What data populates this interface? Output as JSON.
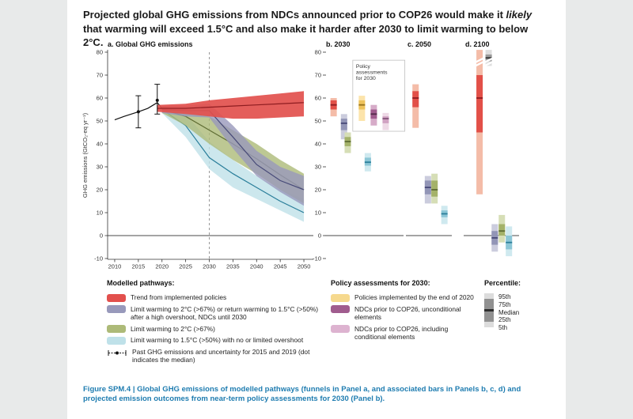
{
  "title": {
    "part1": "Projected global GHG emissions from NDCs announced prior to COP26 would make it ",
    "italic": "likely",
    "part2": " that warming will exceed 1.5°C and also make it harder after 2030 to limit warming to below 2°C."
  },
  "caption": "Figure SPM.4 | Global GHG emissions of modelled pathways (funnels in Panel a, and associated bars in Panels b, c, d) and projected emission outcomes from near-term policy assessments for 2030 (Panel b).",
  "legend": {
    "modelled_title": "Modelled pathways:",
    "modelled_items": [
      {
        "key": "red",
        "label": "Trend from implemented policies"
      },
      {
        "key": "slate",
        "label": "Limit warming to 2°C (>67%) or return warming to 1.5°C (>50%) after a high overshoot, NDCs until 2030"
      },
      {
        "key": "green",
        "label": "Limit warming to 2°C (>67%)"
      },
      {
        "key": "blue",
        "label": "Limit warming to 1.5°C (>50%) with no or limited overshoot"
      }
    ],
    "past_item": "Past GHG emissions and uncertainty for 2015 and 2019 (dot indicates the median)",
    "policy_title": "Policy assessments for 2030:",
    "policy_items": [
      {
        "key": "yellow",
        "label": "Policies implemented by the end of 2020"
      },
      {
        "key": "purple",
        "label": "NDCs prior to COP26, unconditional elements"
      },
      {
        "key": "pink",
        "label": "NDCs prior to COP26, including conditional elements"
      }
    ],
    "percentile_title": "Percentile:",
    "percentile_labels": [
      "95th",
      "75th",
      "Median",
      "25th",
      "5th"
    ]
  },
  "colors": {
    "red": {
      "band": "#e2504d",
      "outer": "#f4bca8",
      "inner": "#e25048",
      "line": "#8e1c20"
    },
    "slate": {
      "band": "#9899bb",
      "outer": "#cbccdd",
      "inner": "#9295b6",
      "line": "#474a78"
    },
    "green": {
      "band": "#adba78",
      "outer": "#d6deb6",
      "inner": "#a4b269",
      "line": "#5e6c33"
    },
    "blue": {
      "band": "#bfe1e9",
      "outer": "#cfe9ef",
      "inner": "#8cc6d6",
      "line": "#2a7e9a"
    },
    "yellow": {
      "band": "#f6d98e",
      "outer": "#fce4ab",
      "inner": "#eec35c",
      "line": "#97721c"
    },
    "purple": {
      "band": "#a05c8e",
      "outer": "#d6abc8",
      "inner": "#a05c8e",
      "line": "#532a4a"
    },
    "pink": {
      "band": "#ddb3d0",
      "outer": "#eed9e6",
      "inner": "#d0a2c2",
      "line": "#84547a"
    },
    "gray": {
      "band": "#9b9b9b",
      "outer": "#dedede",
      "inner": "#9b9b9b",
      "line": "#333333"
    },
    "percentile": [
      "#dcdcdc",
      "#919191",
      "#2e2e2e",
      "#919191",
      "#dcdcdc"
    ],
    "caption": "#1e7cb0"
  },
  "chart_data": {
    "type": "area",
    "ylim": [
      -10,
      80
    ],
    "y_ticks": [
      80,
      70,
      60,
      50,
      40,
      30,
      20,
      10,
      0,
      -10
    ],
    "panel_a": {
      "label": "a. Global GHG emissions",
      "y_axis_label": "GHG emissions (GtCO₂-eq yr⁻¹)",
      "xlim": [
        2008.5,
        2052
      ],
      "x_ticks": [
        2010,
        2015,
        2020,
        2025,
        2030,
        2035,
        2040,
        2045,
        2050
      ],
      "dashed_year": 2030,
      "historical": {
        "x": [
          2010,
          2012,
          2015,
          2017,
          2019,
          2020
        ],
        "y": [
          50.5,
          52,
          54,
          55.5,
          58,
          55.5
        ]
      },
      "past_uncertainty": [
        {
          "year": 2015,
          "lo": 47,
          "median": 54,
          "hi": 61
        },
        {
          "year": 2019,
          "lo": 53,
          "median": 59,
          "hi": 66
        }
      ],
      "funnels": [
        {
          "key": "blue",
          "x": [
            2020,
            2025,
            2030,
            2035,
            2040,
            2045,
            2050
          ],
          "lo": [
            53.5,
            43,
            29,
            21,
            16,
            11,
            6
          ],
          "hi": [
            56.5,
            53,
            41,
            33,
            26,
            20,
            16
          ],
          "median": [
            55,
            48,
            34,
            27,
            21,
            15,
            10
          ]
        },
        {
          "key": "green",
          "x": [
            2020,
            2025,
            2030,
            2035,
            2040,
            2045,
            2050
          ],
          "lo": [
            53.5,
            48,
            40,
            33,
            27,
            20,
            14
          ],
          "hi": [
            56.5,
            55,
            52,
            46,
            40,
            33,
            27
          ],
          "median": [
            55,
            52,
            46,
            40,
            33.5,
            26.5,
            20
          ]
        },
        {
          "key": "slate",
          "x": [
            2020,
            2025,
            2030,
            2035,
            2040,
            2045,
            2050
          ],
          "lo": [
            53.5,
            52,
            51.5,
            38,
            26,
            19,
            13
          ],
          "hi": [
            56.5,
            56.5,
            57.5,
            48,
            37,
            30,
            26
          ],
          "median": [
            55,
            54.5,
            54.5,
            43,
            31,
            24,
            20
          ]
        },
        {
          "key": "red",
          "x": [
            2019,
            2025,
            2030,
            2035,
            2040,
            2045,
            2050
          ],
          "lo": [
            54,
            53,
            52,
            51,
            51,
            51.5,
            52
          ],
          "hi": [
            57,
            57.5,
            59,
            60,
            61,
            62,
            63
          ],
          "median": [
            55.5,
            55.5,
            56,
            56.5,
            57,
            57.5,
            58
          ]
        }
      ]
    },
    "bar_panels": [
      {
        "id": "b",
        "label": "b. 2030",
        "policy_box": {
          "label": "Policy assessments for 2030",
          "x0": 0.36,
          "x1": 1.06,
          "top": 76.5,
          "bottom": 45.5
        },
        "bars": [
          {
            "key": "red",
            "x": 0.06,
            "p5": 52,
            "p25": 55,
            "p50": 57,
            "p75": 59,
            "p95": 60
          },
          {
            "key": "slate",
            "x": 0.2,
            "p5": 42,
            "p25": 46,
            "p50": 49,
            "p75": 51,
            "p95": 53
          },
          {
            "key": "green",
            "x": 0.25,
            "p5": 36,
            "p25": 39,
            "p50": 41,
            "p75": 43,
            "p95": 45
          },
          {
            "key": "yellow",
            "x": 0.44,
            "p5": 50,
            "p25": 55,
            "p50": 57,
            "p75": 59,
            "p95": 61
          },
          {
            "key": "blue",
            "x": 0.52,
            "p5": 28,
            "p25": 30.5,
            "p50": 32,
            "p75": 34,
            "p95": 36
          },
          {
            "key": "purple",
            "x": 0.6,
            "p5": 48,
            "p25": 51,
            "p50": 53,
            "p75": 55,
            "p95": 57
          },
          {
            "key": "pink",
            "x": 0.76,
            "p5": 46,
            "p25": 49,
            "p50": 51,
            "p75": 52,
            "p95": 53.5
          }
        ]
      },
      {
        "id": "c",
        "label": "c. 2050",
        "bars": [
          {
            "key": "red",
            "x": 0.12,
            "p5": 47,
            "p25": 56,
            "p50": 60,
            "p75": 63,
            "p95": 66
          },
          {
            "key": "slate",
            "x": 0.42,
            "p5": 14,
            "p25": 18,
            "p50": 21,
            "p75": 24,
            "p95": 26
          },
          {
            "key": "green",
            "x": 0.58,
            "p5": 14,
            "p25": 17,
            "p50": 20,
            "p75": 24,
            "p95": 27
          },
          {
            "key": "blue",
            "x": 0.82,
            "p5": 5,
            "p25": 8,
            "p50": 9.5,
            "p75": 11,
            "p95": 13
          }
        ]
      },
      {
        "id": "d",
        "label": "d. 2100",
        "bars": [
          {
            "key": "red",
            "x": 0.22,
            "p5": 18,
            "p25": 45,
            "p50": 60,
            "p75": 70,
            "p95": 83,
            "broken_top": true
          },
          {
            "key": "gray",
            "x": 0.4,
            "p5": 74,
            "p25": 76,
            "p50": 77.5,
            "p75": 79,
            "p95": 83,
            "broken_top": true
          },
          {
            "key": "slate",
            "x": 0.52,
            "p5": -7,
            "p25": -4,
            "p50": -1,
            "p75": 2,
            "p95": 5
          },
          {
            "key": "green",
            "x": 0.66,
            "p5": -3,
            "p25": 0,
            "p50": 2,
            "p75": 5,
            "p95": 9
          },
          {
            "key": "blue",
            "x": 0.8,
            "p5": -9,
            "p25": -6,
            "p50": -3,
            "p75": 0,
            "p95": 4
          }
        ]
      }
    ]
  }
}
